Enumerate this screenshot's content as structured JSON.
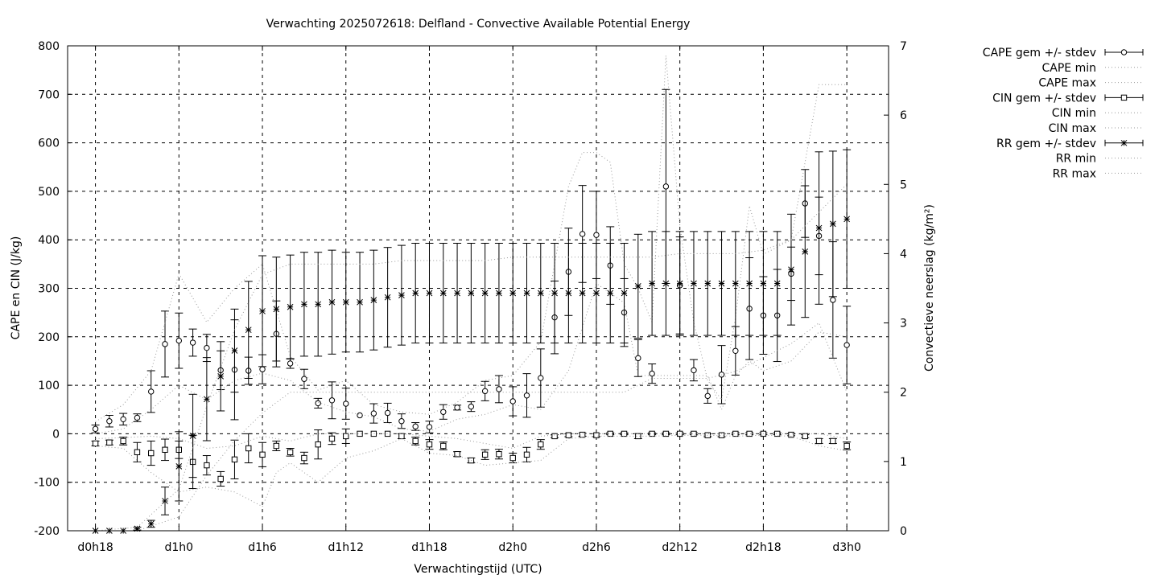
{
  "chart_data": {
    "type": "line",
    "title": "Verwachting 2025072618: Delfland - Convective Available Potential Energy",
    "xlabel": "Verwachtingstijd (UTC)",
    "ylabel": "CAPE en CIN (J/kg)",
    "y2label": "Convectieve neerslag (kg/m²)",
    "x_ticks": [
      {
        "h": 0,
        "label": "d0h18"
      },
      {
        "h": 6,
        "label": "d1h0"
      },
      {
        "h": 12,
        "label": "d1h6"
      },
      {
        "h": 18,
        "label": "d1h12"
      },
      {
        "h": 24,
        "label": "d1h18"
      },
      {
        "h": 30,
        "label": "d2h0"
      },
      {
        "h": 36,
        "label": "d2h6"
      },
      {
        "h": 42,
        "label": "d2h12"
      },
      {
        "h": 48,
        "label": "d2h18"
      },
      {
        "h": 54,
        "label": "d3h0"
      }
    ],
    "xlim": [
      -2,
      57
    ],
    "ylim": [
      -200,
      800
    ],
    "y_ticks": [
      -200,
      -100,
      0,
      100,
      200,
      300,
      400,
      500,
      600,
      700,
      800
    ],
    "y2lim": [
      0,
      7
    ],
    "y2_ticks": [
      0,
      1,
      2,
      3,
      4,
      5,
      6,
      7
    ],
    "grid": true,
    "legend_position": "outside-right",
    "series": [
      {
        "name": "CAPE gem +/- stdev",
        "marker": "circle",
        "axis": "y1",
        "x": [
          0,
          1,
          2,
          3,
          4,
          5,
          6,
          7,
          8,
          9,
          10,
          11,
          12,
          13,
          14,
          15,
          16,
          17,
          18,
          19,
          20,
          21,
          22,
          23,
          24,
          25,
          26,
          27,
          28,
          29,
          30,
          31,
          32,
          33,
          34,
          35,
          36,
          37,
          38,
          39,
          40,
          41,
          42,
          43,
          44,
          45,
          46,
          47,
          48,
          49,
          50,
          51,
          52,
          53,
          54
        ],
        "mean": [
          10,
          26,
          30,
          33,
          87,
          185,
          192,
          188,
          177,
          131,
          132,
          130,
          133,
          206,
          145,
          113,
          63,
          69,
          62,
          38,
          42,
          43,
          26,
          15,
          14,
          45,
          54,
          56,
          88,
          92,
          67,
          79,
          115,
          240,
          334,
          412,
          410,
          347,
          250,
          156,
          124,
          510,
          306,
          131,
          78,
          122,
          171,
          258,
          244,
          244,
          330,
          475,
          408,
          276,
          183
        ],
        "std": [
          8,
          12,
          12,
          8,
          43,
          68,
          57,
          28,
          28,
          40,
          103,
          28,
          30,
          68,
          10,
          20,
          10,
          38,
          32,
          0,
          20,
          20,
          15,
          8,
          12,
          15,
          5,
          10,
          20,
          28,
          30,
          45,
          60,
          75,
          90,
          100,
          90,
          80,
          70,
          38,
          20,
          200,
          100,
          22,
          15,
          60,
          50,
          105,
          80,
          95,
          55,
          70,
          80,
          120,
          80
        ]
      },
      {
        "name": "CAPE min",
        "style": "dotted",
        "axis": "y1",
        "x": [
          0,
          2,
          4,
          6,
          8,
          10,
          12,
          14,
          16,
          18,
          20,
          22,
          24,
          26,
          28,
          30,
          32,
          34,
          36,
          38,
          39,
          40,
          42,
          44,
          45,
          46,
          47,
          48,
          50,
          52,
          54
        ],
        "y": [
          0,
          10,
          50,
          100,
          70,
          110,
          125,
          110,
          65,
          45,
          35,
          10,
          5,
          30,
          40,
          60,
          50,
          130,
          310,
          270,
          120,
          120,
          120,
          120,
          50,
          120,
          150,
          130,
          150,
          210,
          200
        ]
      },
      {
        "name": "CAPE max",
        "style": "dotted",
        "axis": "y1",
        "x": [
          0,
          2,
          4,
          6,
          8,
          10,
          12,
          14,
          16,
          18,
          20,
          22,
          24,
          26,
          28,
          30,
          32,
          34,
          35,
          36,
          37,
          38,
          39,
          40,
          41,
          42,
          43,
          44,
          45,
          46,
          47,
          48,
          50,
          51,
          52,
          54
        ],
        "y": [
          25,
          60,
          130,
          330,
          230,
          300,
          350,
          160,
          90,
          110,
          60,
          45,
          40,
          65,
          110,
          120,
          190,
          510,
          580,
          580,
          560,
          350,
          300,
          230,
          780,
          430,
          230,
          110,
          70,
          240,
          470,
          370,
          400,
          560,
          720,
          720
        ]
      },
      {
        "name": "CIN gem +/- stdev",
        "marker": "square",
        "axis": "y1",
        "x": [
          0,
          1,
          2,
          3,
          4,
          5,
          6,
          7,
          8,
          9,
          10,
          11,
          12,
          13,
          14,
          15,
          16,
          17,
          18,
          19,
          20,
          21,
          22,
          23,
          24,
          25,
          26,
          27,
          28,
          29,
          30,
          31,
          32,
          33,
          34,
          35,
          36,
          37,
          38,
          39,
          40,
          41,
          42,
          43,
          44,
          45,
          46,
          47,
          48,
          49,
          50,
          51,
          52,
          53,
          54
        ],
        "mean": [
          -20,
          -18,
          -15,
          -38,
          -40,
          -33,
          -33,
          -58,
          -65,
          -93,
          -53,
          -30,
          -43,
          -25,
          -38,
          -50,
          -22,
          -10,
          -5,
          0,
          0,
          0,
          -5,
          -15,
          -22,
          -25,
          -42,
          -55,
          -43,
          -42,
          -50,
          -43,
          -22,
          -5,
          -3,
          -2,
          -3,
          0,
          0,
          -5,
          0,
          0,
          0,
          0,
          -3,
          -3,
          0,
          0,
          0,
          0,
          -2,
          -5,
          -15,
          -15,
          -25
        ],
        "std": [
          5,
          5,
          8,
          20,
          25,
          22,
          18,
          55,
          20,
          15,
          40,
          30,
          25,
          10,
          8,
          12,
          30,
          12,
          15,
          0,
          0,
          0,
          5,
          8,
          10,
          8,
          5,
          5,
          10,
          10,
          10,
          15,
          10,
          3,
          3,
          3,
          3,
          2,
          2,
          5,
          2,
          2,
          2,
          2,
          3,
          3,
          2,
          2,
          2,
          2,
          2,
          3,
          5,
          5,
          8
        ]
      },
      {
        "name": "CIN min",
        "style": "dotted",
        "axis": "y1",
        "x": [
          0,
          2,
          4,
          6,
          8,
          10,
          12,
          13,
          14,
          16,
          18,
          20,
          22,
          24,
          26,
          28,
          30,
          32,
          34,
          36,
          38,
          40,
          42,
          44,
          46,
          48,
          50,
          52,
          54
        ],
        "y": [
          -25,
          -30,
          -80,
          -120,
          -110,
          -120,
          -150,
          -80,
          -60,
          -100,
          -50,
          -35,
          -10,
          -40,
          -45,
          -65,
          -60,
          -55,
          -10,
          -5,
          -5,
          -5,
          -3,
          -3,
          -5,
          -3,
          -5,
          -25,
          -35
        ]
      },
      {
        "name": "CIN max",
        "style": "dotted",
        "axis": "y1",
        "x": [
          0,
          2,
          4,
          6,
          8,
          10,
          12,
          14,
          16,
          18,
          20,
          22,
          24,
          26,
          28,
          30,
          32,
          34,
          36,
          38,
          40,
          42,
          44,
          46,
          48,
          50,
          52,
          54
        ],
        "y": [
          -10,
          -8,
          -5,
          -10,
          -30,
          -25,
          -5,
          -15,
          0,
          0,
          0,
          0,
          -5,
          -10,
          -20,
          -30,
          -5,
          0,
          0,
          0,
          0,
          0,
          0,
          0,
          0,
          0,
          0,
          -10
        ]
      },
      {
        "name": "RR gem +/- stdev",
        "marker": "star",
        "axis": "y2",
        "x": [
          0,
          1,
          2,
          3,
          4,
          5,
          6,
          7,
          8,
          9,
          10,
          11,
          12,
          13,
          14,
          15,
          16,
          17,
          18,
          19,
          20,
          21,
          22,
          23,
          24,
          25,
          26,
          27,
          28,
          29,
          30,
          31,
          32,
          33,
          34,
          35,
          36,
          37,
          38,
          39,
          40,
          41,
          42,
          43,
          44,
          45,
          46,
          47,
          48,
          49,
          50,
          51,
          52,
          53,
          54
        ],
        "mean": [
          0,
          0,
          0,
          0.03,
          0.1,
          0.43,
          0.93,
          1.37,
          1.9,
          2.23,
          2.6,
          2.9,
          3.17,
          3.2,
          3.23,
          3.27,
          3.27,
          3.3,
          3.3,
          3.3,
          3.33,
          3.37,
          3.4,
          3.43,
          3.43,
          3.43,
          3.43,
          3.43,
          3.43,
          3.43,
          3.43,
          3.43,
          3.43,
          3.43,
          3.43,
          3.43,
          3.43,
          3.43,
          3.43,
          3.53,
          3.57,
          3.57,
          3.57,
          3.57,
          3.57,
          3.57,
          3.57,
          3.57,
          3.57,
          3.57,
          3.77,
          4.03,
          4.37,
          4.43,
          4.5
        ],
        "std": [
          0,
          0,
          0,
          0.02,
          0.05,
          0.2,
          0.5,
          0.6,
          0.6,
          0.5,
          0.6,
          0.7,
          0.8,
          0.75,
          0.75,
          0.75,
          0.75,
          0.75,
          0.72,
          0.72,
          0.72,
          0.72,
          0.72,
          0.72,
          0.72,
          0.72,
          0.72,
          0.72,
          0.72,
          0.72,
          0.72,
          0.72,
          0.72,
          0.72,
          0.72,
          0.72,
          0.72,
          0.72,
          0.72,
          0.75,
          0.75,
          0.75,
          0.75,
          0.75,
          0.75,
          0.75,
          0.75,
          0.75,
          0.75,
          0.75,
          0.8,
          0.95,
          1.1,
          1.05,
          1.0
        ]
      },
      {
        "name": "RR min",
        "style": "dotted",
        "axis": "y2",
        "x": [
          0,
          3,
          6,
          8,
          10,
          12,
          14,
          16,
          18,
          20,
          22,
          24,
          26,
          28,
          30,
          32,
          34,
          36,
          38,
          40,
          42,
          44,
          46,
          48,
          50,
          52,
          54
        ],
        "y": [
          0,
          0,
          0.2,
          0.8,
          1.3,
          1.7,
          2.0,
          2.0,
          2.0,
          2.0,
          2.0,
          2.0,
          2.0,
          2.0,
          2.0,
          2.0,
          2.0,
          2.0,
          2.0,
          2.2,
          2.2,
          2.2,
          2.3,
          2.5,
          2.7,
          3.0,
          2.0
        ]
      },
      {
        "name": "RR max",
        "style": "dotted",
        "axis": "y2",
        "x": [
          0,
          3,
          6,
          8,
          10,
          12,
          14,
          16,
          18,
          20,
          22,
          24,
          26,
          28,
          30,
          32,
          34,
          36,
          38,
          40,
          42,
          44,
          46,
          48,
          50,
          52,
          54
        ],
        "y": [
          0,
          0.05,
          0.6,
          1.8,
          2.9,
          3.7,
          3.85,
          3.85,
          3.85,
          3.85,
          3.9,
          3.9,
          3.9,
          3.9,
          3.95,
          3.95,
          3.95,
          3.95,
          3.95,
          3.95,
          4.0,
          4.0,
          4.0,
          4.05,
          4.2,
          4.6,
          5.0
        ]
      }
    ]
  }
}
